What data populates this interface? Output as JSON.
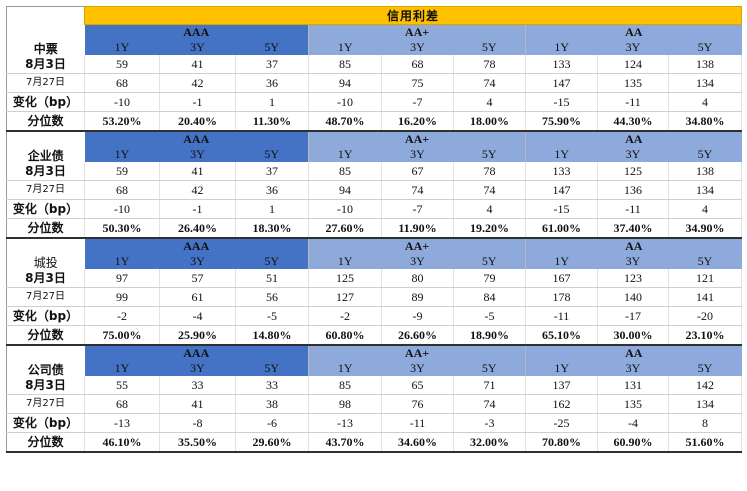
{
  "title": "信用利差",
  "grades": [
    "AAA",
    "AA+",
    "AA"
  ],
  "tenors": [
    "1Y",
    "3Y",
    "5Y"
  ],
  "sections": [
    {
      "name": "中票",
      "rows": [
        {
          "label": "8月3日",
          "values": [
            "59",
            "41",
            "37",
            "85",
            "68",
            "78",
            "133",
            "124",
            "138"
          ]
        },
        {
          "label": "7月27日",
          "values": [
            "68",
            "42",
            "36",
            "94",
            "75",
            "74",
            "147",
            "135",
            "134"
          ]
        },
        {
          "label": "变化（bp）",
          "values": [
            "-10",
            "-1",
            "1",
            "-10",
            "-7",
            "4",
            "-15",
            "-11",
            "4"
          ]
        },
        {
          "label": "分位数",
          "values": [
            "53.20%",
            "20.40%",
            "11.30%",
            "48.70%",
            "16.20%",
            "18.00%",
            "75.90%",
            "44.30%",
            "34.80%"
          ]
        }
      ]
    },
    {
      "name": "企业债",
      "rows": [
        {
          "label": "8月3日",
          "values": [
            "59",
            "41",
            "37",
            "85",
            "67",
            "78",
            "133",
            "125",
            "138"
          ]
        },
        {
          "label": "7月27日",
          "values": [
            "68",
            "42",
            "36",
            "94",
            "74",
            "74",
            "147",
            "136",
            "134"
          ]
        },
        {
          "label": "变化（bp）",
          "values": [
            "-10",
            "-1",
            "1",
            "-10",
            "-7",
            "4",
            "-15",
            "-11",
            "4"
          ]
        },
        {
          "label": "分位数",
          "values": [
            "50.30%",
            "26.40%",
            "18.30%",
            "27.60%",
            "11.90%",
            "19.20%",
            "61.00%",
            "37.40%",
            "34.90%"
          ]
        }
      ]
    },
    {
      "name": "城投",
      "rows": [
        {
          "label": "8月3日",
          "values": [
            "97",
            "57",
            "51",
            "125",
            "80",
            "79",
            "167",
            "123",
            "121"
          ]
        },
        {
          "label": "7月27日",
          "values": [
            "99",
            "61",
            "56",
            "127",
            "89",
            "84",
            "178",
            "140",
            "141"
          ]
        },
        {
          "label": "变化（bp）",
          "values": [
            "-2",
            "-4",
            "-5",
            "-2",
            "-9",
            "-5",
            "-11",
            "-17",
            "-20"
          ]
        },
        {
          "label": "分位数",
          "values": [
            "75.00%",
            "25.90%",
            "14.80%",
            "60.80%",
            "26.60%",
            "18.90%",
            "65.10%",
            "30.00%",
            "23.10%"
          ]
        }
      ]
    },
    {
      "name": "公司债",
      "rows": [
        {
          "label": "8月3日",
          "values": [
            "55",
            "33",
            "33",
            "85",
            "65",
            "71",
            "137",
            "131",
            "142"
          ]
        },
        {
          "label": "7月27日",
          "values": [
            "68",
            "41",
            "38",
            "98",
            "76",
            "74",
            "162",
            "135",
            "134"
          ]
        },
        {
          "label": "变化（bp）",
          "values": [
            "-13",
            "-8",
            "-6",
            "-13",
            "-11",
            "-3",
            "-25",
            "-4",
            "8"
          ]
        },
        {
          "label": "分位数",
          "values": [
            "46.10%",
            "35.50%",
            "29.60%",
            "43.70%",
            "34.60%",
            "32.00%",
            "70.80%",
            "60.90%",
            "51.60%"
          ]
        }
      ]
    }
  ]
}
